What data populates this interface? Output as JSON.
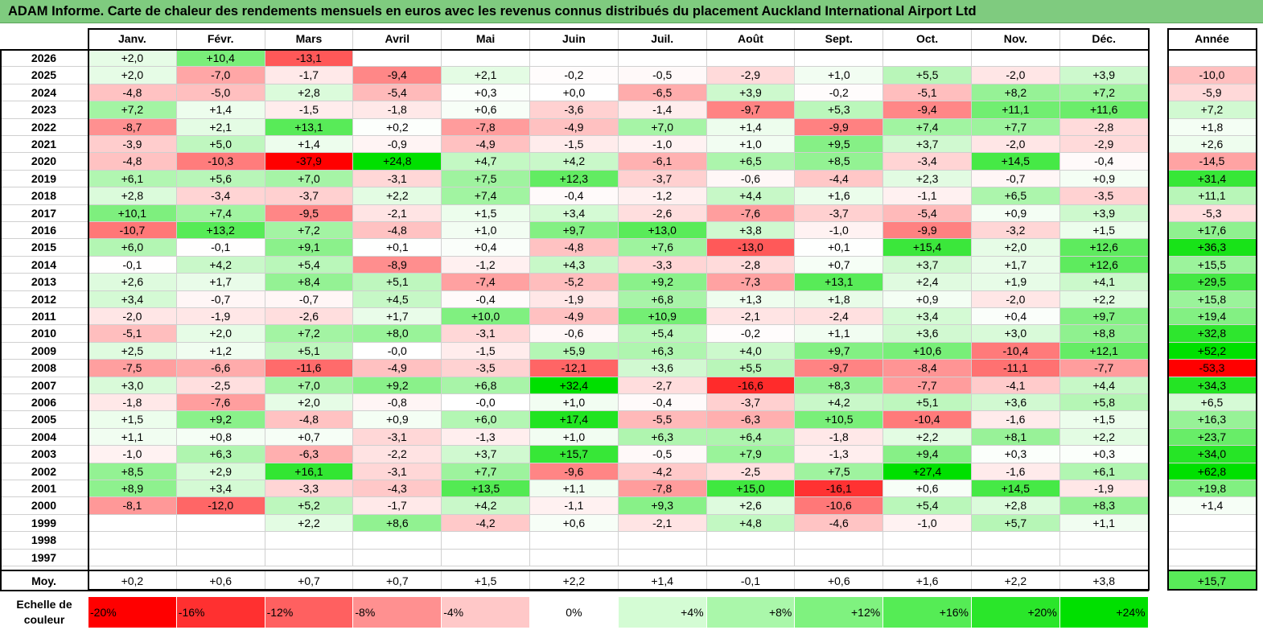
{
  "title": "ADAM Informe. Carte de chaleur des rendements mensuels en euros avec les revenus connus distribués du placement Auckland International Airport Ltd",
  "chart_data": {
    "type": "heatmap",
    "months": [
      "Janv.",
      "Févr.",
      "Mars",
      "Avril",
      "Mai",
      "Juin",
      "Juil.",
      "Août",
      "Sept.",
      "Oct.",
      "Nov.",
      "Déc."
    ],
    "year_header": "Année",
    "avg_label": "Moy.",
    "rows": [
      {
        "year": "2026",
        "values": [
          "+2,0",
          "+10,4",
          "-13,1",
          "",
          "",
          "",
          "",
          "",
          "",
          "",
          "",
          ""
        ],
        "annual": ""
      },
      {
        "year": "2025",
        "values": [
          "+2,0",
          "-7,0",
          "-1,7",
          "-9,4",
          "+2,1",
          "-0,2",
          "-0,5",
          "-2,9",
          "+1,0",
          "+5,5",
          "-2,0",
          "+3,9"
        ],
        "annual": "-10,0"
      },
      {
        "year": "2024",
        "values": [
          "-4,8",
          "-5,0",
          "+2,8",
          "-5,4",
          "+0,3",
          "+0,0",
          "-6,5",
          "+3,9",
          "-0,2",
          "-5,1",
          "+8,2",
          "+7,2"
        ],
        "annual": "-5,9"
      },
      {
        "year": "2023",
        "values": [
          "+7,2",
          "+1,4",
          "-1,5",
          "-1,8",
          "+0,6",
          "-3,6",
          "-1,4",
          "-9,7",
          "+5,3",
          "-9,4",
          "+11,1",
          "+11,6"
        ],
        "annual": "+7,2"
      },
      {
        "year": "2022",
        "values": [
          "-8,7",
          "+2,1",
          "+13,1",
          "+0,2",
          "-7,8",
          "-4,9",
          "+7,0",
          "+1,4",
          "-9,9",
          "+7,4",
          "+7,7",
          "-2,8"
        ],
        "annual": "+1,8"
      },
      {
        "year": "2021",
        "values": [
          "-3,9",
          "+5,0",
          "+1,4",
          "-0,9",
          "-4,9",
          "-1,5",
          "-1,0",
          "+1,0",
          "+9,5",
          "+3,7",
          "-2,0",
          "-2,9"
        ],
        "annual": "+2,6"
      },
      {
        "year": "2020",
        "values": [
          "-4,8",
          "-10,3",
          "-37,9",
          "+24,8",
          "+4,7",
          "+4,2",
          "-6,1",
          "+6,5",
          "+8,5",
          "-3,4",
          "+14,5",
          "-0,4"
        ],
        "annual": "-14,5"
      },
      {
        "year": "2019",
        "values": [
          "+6,1",
          "+5,6",
          "+7,0",
          "-3,1",
          "+7,5",
          "+12,3",
          "-3,7",
          "-0,6",
          "-4,4",
          "+2,3",
          "-0,7",
          "+0,9"
        ],
        "annual": "+31,4"
      },
      {
        "year": "2018",
        "values": [
          "+2,8",
          "-3,4",
          "-3,7",
          "+2,2",
          "+7,4",
          "-0,4",
          "-1,2",
          "+4,4",
          "+1,6",
          "-1,1",
          "+6,5",
          "-3,5"
        ],
        "annual": "+11,1"
      },
      {
        "year": "2017",
        "values": [
          "+10,1",
          "+7,4",
          "-9,5",
          "-2,1",
          "+1,5",
          "+3,4",
          "-2,6",
          "-7,6",
          "-3,7",
          "-5,4",
          "+0,9",
          "+3,9"
        ],
        "annual": "-5,3"
      },
      {
        "year": "2016",
        "values": [
          "-10,7",
          "+13,2",
          "+7,2",
          "-4,8",
          "+1,0",
          "+9,7",
          "+13,0",
          "+3,8",
          "-1,0",
          "-9,9",
          "-3,2",
          "+1,5"
        ],
        "annual": "+17,6"
      },
      {
        "year": "2015",
        "values": [
          "+6,0",
          "-0,1",
          "+9,1",
          "+0,1",
          "+0,4",
          "-4,8",
          "+7,6",
          "-13,0",
          "+0,1",
          "+15,4",
          "+2,0",
          "+12,6"
        ],
        "annual": "+36,3"
      },
      {
        "year": "2014",
        "values": [
          "-0,1",
          "+4,2",
          "+5,4",
          "-8,9",
          "-1,2",
          "+4,3",
          "-3,3",
          "-2,8",
          "+0,7",
          "+3,7",
          "+1,7",
          "+12,6"
        ],
        "annual": "+15,5"
      },
      {
        "year": "2013",
        "values": [
          "+2,6",
          "+1,7",
          "+8,4",
          "+5,1",
          "-7,4",
          "-5,2",
          "+9,2",
          "-7,3",
          "+13,1",
          "+2,4",
          "+1,9",
          "+4,1"
        ],
        "annual": "+29,5"
      },
      {
        "year": "2012",
        "values": [
          "+3,4",
          "-0,7",
          "-0,7",
          "+4,5",
          "-0,4",
          "-1,9",
          "+6,8",
          "+1,3",
          "+1,8",
          "+0,9",
          "-2,0",
          "+2,2"
        ],
        "annual": "+15,8"
      },
      {
        "year": "2011",
        "values": [
          "-2,0",
          "-1,9",
          "-2,6",
          "+1,7",
          "+10,0",
          "-4,9",
          "+10,9",
          "-2,1",
          "-2,4",
          "+3,4",
          "+0,4",
          "+9,7"
        ],
        "annual": "+19,4"
      },
      {
        "year": "2010",
        "values": [
          "-5,1",
          "+2,0",
          "+7,2",
          "+8,0",
          "-3,1",
          "-0,6",
          "+5,4",
          "-0,2",
          "+1,1",
          "+3,6",
          "+3,0",
          "+8,8"
        ],
        "annual": "+32,8"
      },
      {
        "year": "2009",
        "values": [
          "+2,5",
          "+1,2",
          "+5,1",
          "-0,0",
          "-1,5",
          "+5,9",
          "+6,3",
          "+4,0",
          "+9,7",
          "+10,6",
          "-10,4",
          "+12,1"
        ],
        "annual": "+52,2"
      },
      {
        "year": "2008",
        "values": [
          "-7,5",
          "-6,6",
          "-11,6",
          "-4,9",
          "-3,5",
          "-12,1",
          "+3,6",
          "+5,5",
          "-9,7",
          "-8,4",
          "-11,1",
          "-7,7"
        ],
        "annual": "-53,3"
      },
      {
        "year": "2007",
        "values": [
          "+3,0",
          "-2,5",
          "+7,0",
          "+9,2",
          "+6,8",
          "+32,4",
          "-2,7",
          "-16,6",
          "+8,3",
          "-7,7",
          "-4,1",
          "+4,4"
        ],
        "annual": "+34,3"
      },
      {
        "year": "2006",
        "values": [
          "-1,8",
          "-7,6",
          "+2,0",
          "-0,8",
          "-0,0",
          "+1,0",
          "-0,4",
          "-3,7",
          "+4,2",
          "+5,1",
          "+3,6",
          "+5,8"
        ],
        "annual": "+6,5"
      },
      {
        "year": "2005",
        "values": [
          "+1,5",
          "+9,2",
          "-4,8",
          "+0,9",
          "+6,0",
          "+17,4",
          "-5,5",
          "-6,3",
          "+10,5",
          "-10,4",
          "-1,6",
          "+1,5"
        ],
        "annual": "+16,3"
      },
      {
        "year": "2004",
        "values": [
          "+1,1",
          "+0,8",
          "+0,7",
          "-3,1",
          "-1,3",
          "+1,0",
          "+6,3",
          "+6,4",
          "-1,8",
          "+2,2",
          "+8,1",
          "+2,2"
        ],
        "annual": "+23,7"
      },
      {
        "year": "2003",
        "values": [
          "-1,0",
          "+6,3",
          "-6,3",
          "-2,2",
          "+3,7",
          "+15,7",
          "-0,5",
          "+7,9",
          "-1,3",
          "+9,4",
          "+0,3",
          "+0,3"
        ],
        "annual": "+34,0"
      },
      {
        "year": "2002",
        "values": [
          "+8,5",
          "+2,9",
          "+16,1",
          "-3,1",
          "+7,7",
          "-9,6",
          "-4,2",
          "-2,5",
          "+7,5",
          "+27,4",
          "-1,6",
          "+6,1"
        ],
        "annual": "+62,8"
      },
      {
        "year": "2001",
        "values": [
          "+8,9",
          "+3,4",
          "-3,3",
          "-4,3",
          "+13,5",
          "+1,1",
          "-7,8",
          "+15,0",
          "-16,1",
          "+0,6",
          "+14,5",
          "-1,9"
        ],
        "annual": "+19,8"
      },
      {
        "year": "2000",
        "values": [
          "-8,1",
          "-12,0",
          "+5,2",
          "-1,7",
          "+4,2",
          "-1,1",
          "+9,3",
          "+2,6",
          "-10,6",
          "+5,4",
          "+2,8",
          "+8,3"
        ],
        "annual": "+1,4"
      },
      {
        "year": "1999",
        "values": [
          "",
          "",
          "+2,2",
          "+8,6",
          "-4,2",
          "+0,6",
          "-2,1",
          "+4,8",
          "-4,6",
          "-1,0",
          "+5,7",
          "+1,1"
        ],
        "annual": ""
      },
      {
        "year": "1998",
        "values": [
          "",
          "",
          "",
          "",
          "",
          "",
          "",
          "",
          "",
          "",
          "",
          ""
        ],
        "annual": ""
      },
      {
        "year": "1997",
        "values": [
          "",
          "",
          "",
          "",
          "",
          "",
          "",
          "",
          "",
          "",
          "",
          ""
        ],
        "annual": ""
      }
    ],
    "averages": [
      "+0,2",
      "+0,6",
      "+0,7",
      "+0,7",
      "+1,5",
      "+2,2",
      "+1,4",
      "-0,1",
      "+0,6",
      "+1,6",
      "+2,2",
      "+3,8"
    ],
    "average_annual": "+15,7",
    "color_scale": {
      "label": "Echelle de couleur",
      "steps": [
        {
          "label": "-20%",
          "value": -20,
          "color": "#ff0000"
        },
        {
          "label": "-16%",
          "value": -16,
          "color": "#ff3030"
        },
        {
          "label": "-12%",
          "value": -12,
          "color": "#ff6060"
        },
        {
          "label": "-8%",
          "value": -8,
          "color": "#ff9090"
        },
        {
          "label": "-4%",
          "value": -4,
          "color": "#ffc8c8"
        },
        {
          "label": "0%",
          "value": 0,
          "color": "#ffffff"
        },
        {
          "label": "+4%",
          "value": 4,
          "color": "#d4fcd4"
        },
        {
          "label": "+8%",
          "value": 8,
          "color": "#aaf7aa"
        },
        {
          "label": "+12%",
          "value": 12,
          "color": "#7ff27f"
        },
        {
          "label": "+16%",
          "value": 16,
          "color": "#55ec55"
        },
        {
          "label": "+20%",
          "value": 20,
          "color": "#2ae62a"
        },
        {
          "label": "+24%",
          "value": 24,
          "color": "#00e000"
        }
      ]
    }
  }
}
